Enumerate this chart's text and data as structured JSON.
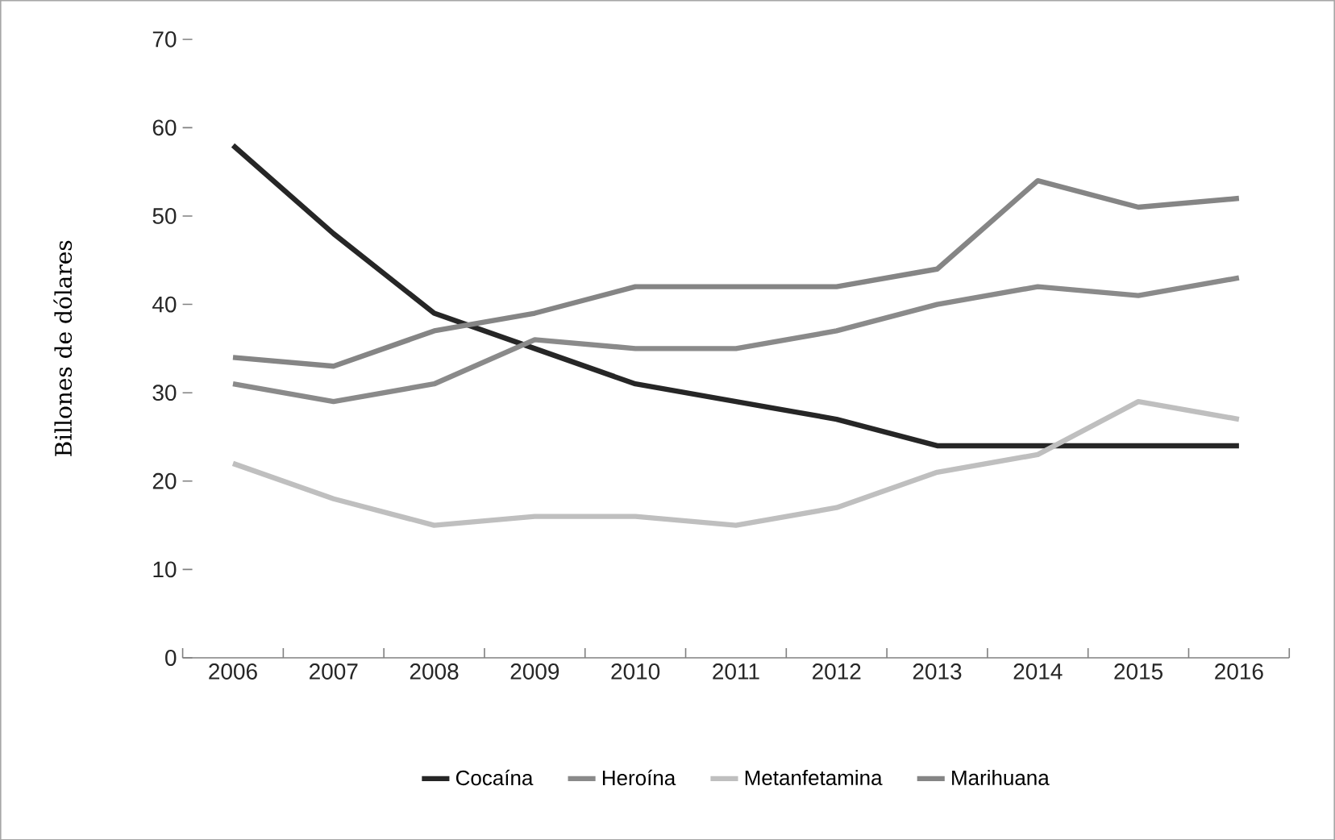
{
  "chart_data": {
    "type": "line",
    "ylabel": "Billones de dólares",
    "categories": [
      "2006",
      "2007",
      "2008",
      "2009",
      "2010",
      "2011",
      "2012",
      "2013",
      "2014",
      "2015",
      "2016"
    ],
    "series": [
      {
        "name": "Cocaína",
        "color": "#262626",
        "values": [
          58,
          48,
          39,
          35,
          31,
          29,
          27,
          24,
          24,
          24,
          24
        ]
      },
      {
        "name": "Heroína",
        "color": "#8a8a8a",
        "values": [
          31,
          29,
          31,
          36,
          35,
          35,
          37,
          40,
          42,
          41,
          43
        ]
      },
      {
        "name": "Metanfetamina",
        "color": "#bfbfbf",
        "values": [
          22,
          18,
          15,
          16,
          16,
          15,
          17,
          21,
          23,
          29,
          27
        ]
      },
      {
        "name": "Marihuana",
        "color": "#858585",
        "values": [
          34,
          33,
          37,
          39,
          42,
          42,
          42,
          44,
          54,
          51,
          52
        ]
      }
    ],
    "ylim": [
      0,
      70
    ],
    "yticks": [
      0,
      10,
      20,
      30,
      40,
      50,
      60,
      70
    ],
    "grid": false,
    "legend": "bottom",
    "marker": "none",
    "line_style": "solid"
  }
}
